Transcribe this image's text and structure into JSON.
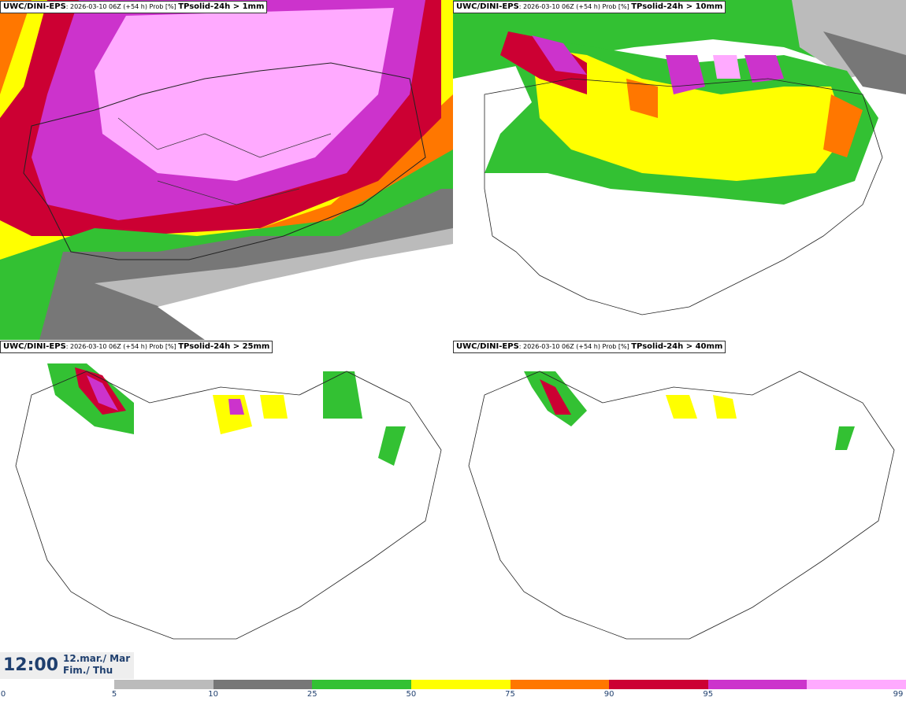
{
  "panels": [
    {
      "model": "UWC/DINI-EPS",
      "run": ": 2026-03-10 06Z (+54 h) Prob [%] ",
      "variable": "TPsolid-24h > 1mm"
    },
    {
      "model": "UWC/DINI-EPS",
      "run": ": 2026-03-10 06Z (+54 h) Prob [%] ",
      "variable": "TPsolid-24h > 10mm"
    },
    {
      "model": "UWC/DINI-EPS",
      "run": ": 2026-03-10 06Z (+54 h) Prob [%] ",
      "variable": "TPsolid-24h > 25mm"
    },
    {
      "model": "UWC/DINI-EPS",
      "run": ": 2026-03-10 06Z (+54 h) Prob [%] ",
      "variable": "TPsolid-24h > 40mm"
    }
  ],
  "valid": {
    "time": "12:00",
    "date_line1": "12.mar./ Mar",
    "date_line2": "Fim./ Thu"
  },
  "colorbar": {
    "ticks": [
      "0",
      "5",
      "10",
      "25",
      "50",
      "75",
      "90",
      "95",
      "99"
    ],
    "colors": [
      "#bbbbbb",
      "#777777",
      "#33c133",
      "#ffff00",
      "#ff7700",
      "#cc0033",
      "#cc33cc",
      "#ffaaff"
    ]
  }
}
